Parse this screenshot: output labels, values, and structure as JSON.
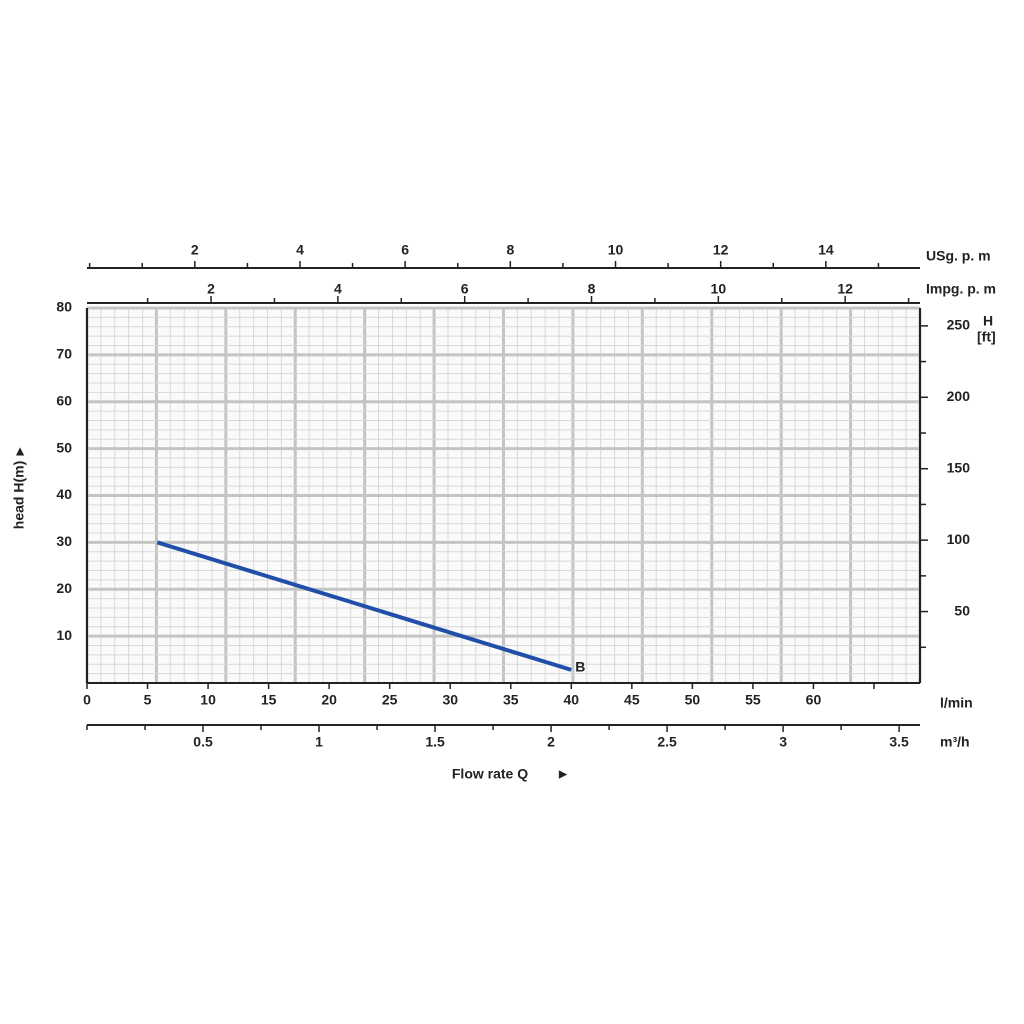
{
  "chart_data": {
    "type": "line",
    "xlabel": "l/min",
    "xlim": [
      0,
      68.8
    ],
    "xticks": [
      0,
      5,
      10,
      15,
      20,
      25,
      30,
      35,
      40,
      45,
      50,
      55,
      60
    ],
    "x_minor_ticks": [
      65
    ],
    "ylabel": "head H(m)",
    "ylim": [
      0,
      80
    ],
    "yticks": [
      10,
      20,
      30,
      40,
      50,
      60,
      70,
      80
    ],
    "y2label": "H",
    "y2unit": "[ft]",
    "y2lim": [
      0,
      262.5
    ],
    "y2ticks": [
      50,
      100,
      150,
      200,
      250
    ],
    "y2_minor_ticks": [
      25,
      75,
      125,
      175,
      225
    ],
    "flow_title": "Flow rate Q",
    "m3h_axis": {
      "label": "m³/h",
      "lim": [
        0,
        3.59
      ],
      "ticks": [
        0.5,
        1.0,
        1.5,
        2.0,
        2.5,
        3.0,
        3.5
      ],
      "minor_ticks": [
        0,
        0.25,
        0.75,
        1.25,
        1.75,
        2.25,
        2.75,
        3.25
      ]
    },
    "usgpm_axis": {
      "label": "USg. p. m",
      "lim": [
        -0.05,
        15.79
      ],
      "ticks": [
        2,
        4,
        6,
        8,
        10,
        12,
        14
      ],
      "minor_ticks": [
        0,
        1,
        3,
        5,
        7,
        9,
        11,
        13,
        15
      ]
    },
    "impgpm_axis": {
      "label": "Impg. p. m",
      "lim": [
        0.044,
        13.18
      ],
      "ticks": [
        2,
        4,
        6,
        8,
        10,
        12
      ],
      "minor_ticks": [
        1,
        3,
        5,
        7,
        9,
        11,
        13
      ]
    },
    "grid": true,
    "x": [
      5.8,
      40
    ],
    "values": [
      30,
      2.8
    ],
    "color": "#1f4fa8",
    "end_label": "B"
  }
}
